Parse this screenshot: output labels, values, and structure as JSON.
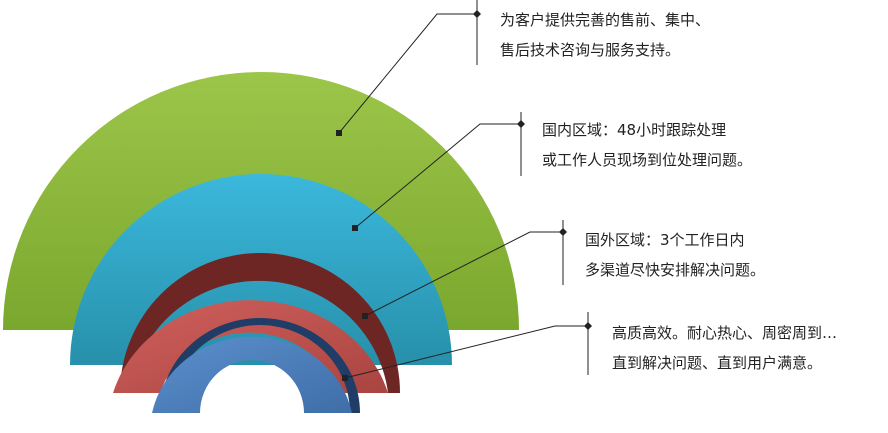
{
  "layers": [
    {
      "id": "outer",
      "color": "#8cb83a",
      "lines": [
        "为客户提供完善的售前、集中、",
        "售后技术咨询与服务支持。"
      ]
    },
    {
      "id": "second",
      "color": "#2eaccd",
      "lines": [
        "国内区域：48小时跟踪处理",
        "或工作人员现场到位处理问题。"
      ]
    },
    {
      "id": "third",
      "color": "#c0504d",
      "lines": [
        "国外区域：3个工作日内",
        "多渠道尽快安排解决问题。"
      ]
    },
    {
      "id": "inner",
      "color": "#4f81bd",
      "lines": [
        "高质高效。耐心热心、周密周到…",
        "直到解决问题、直到用户满意。"
      ]
    }
  ]
}
